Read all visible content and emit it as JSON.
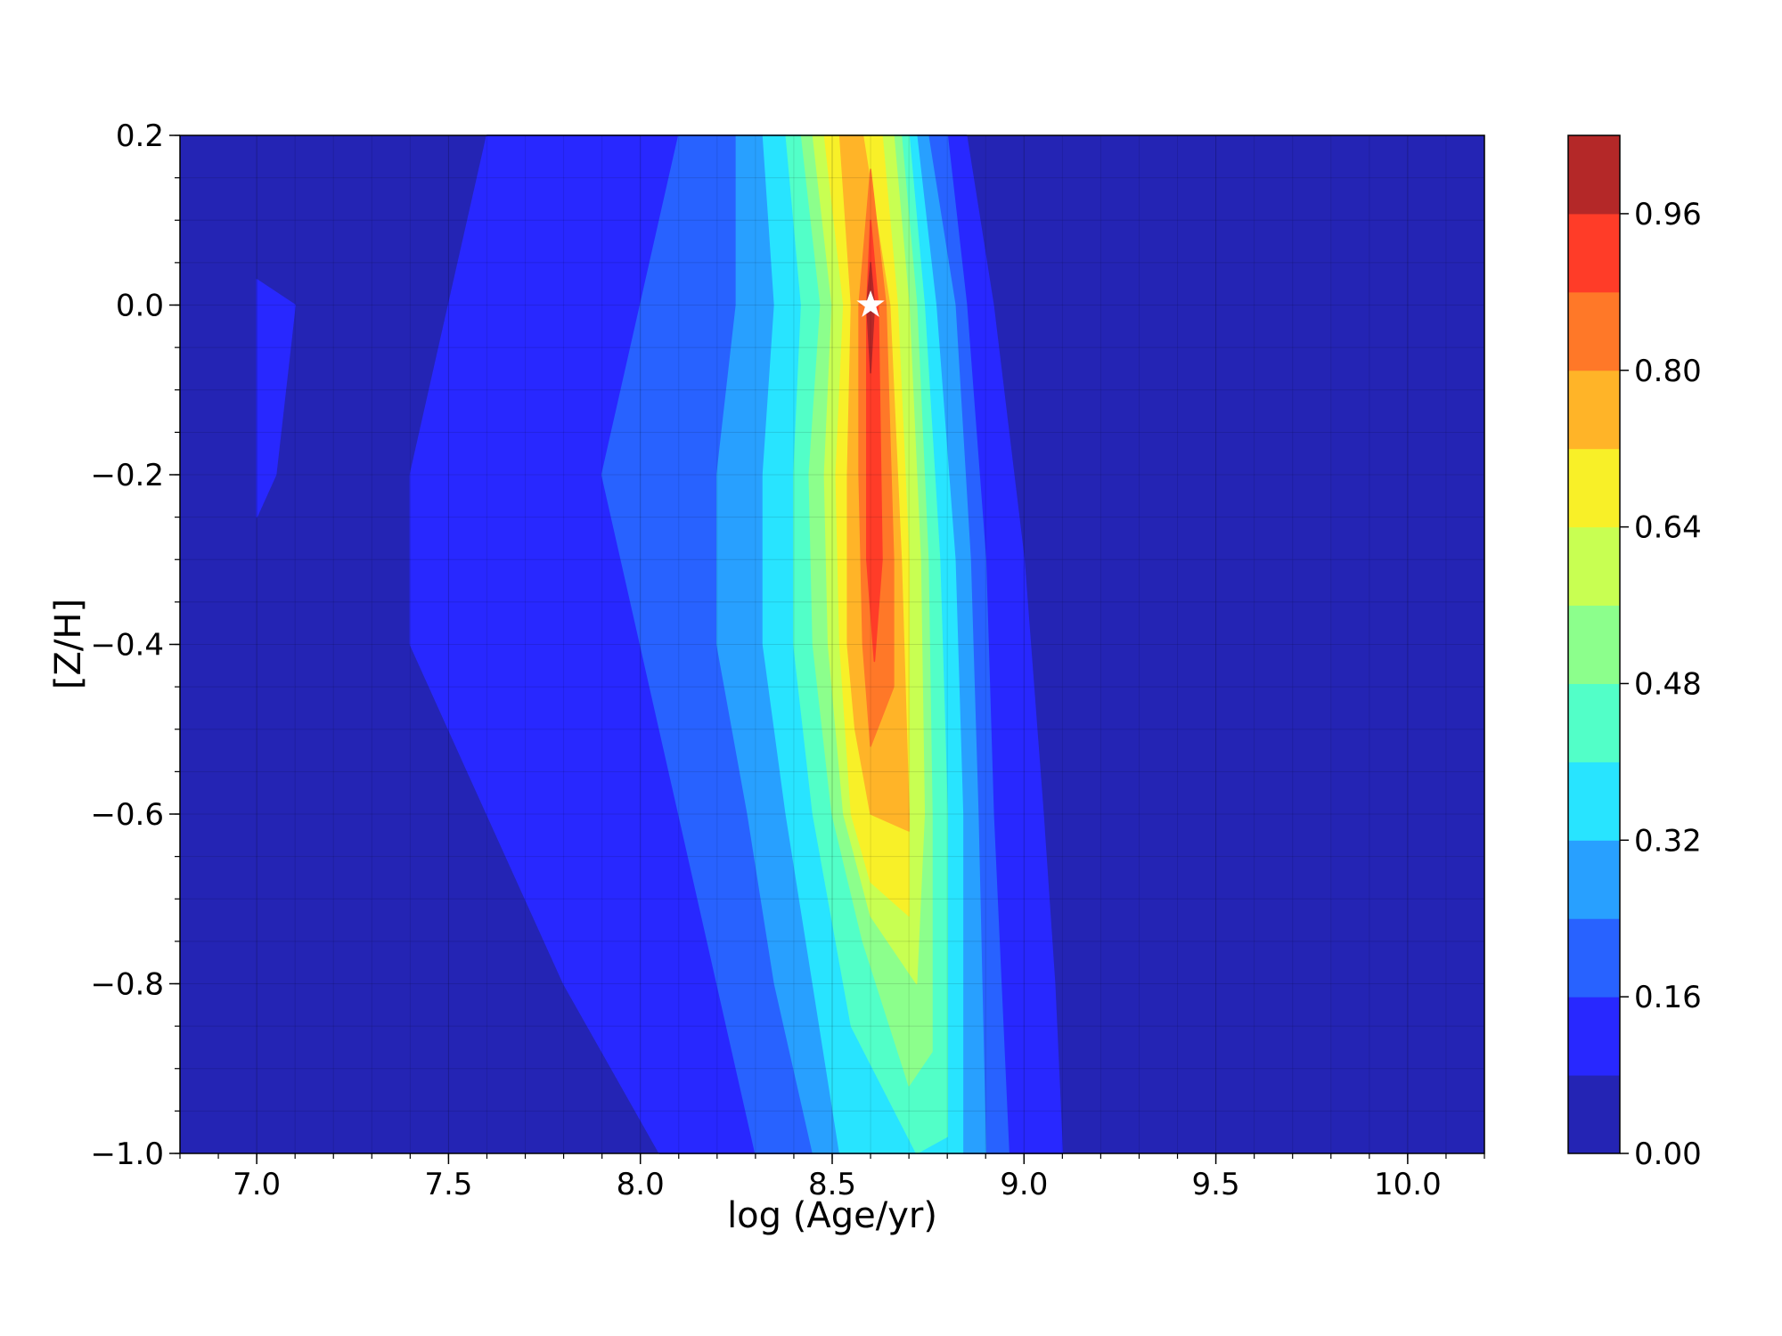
{
  "chart_data": {
    "type": "contour",
    "title": "",
    "xlabel": "log (Age/yr)",
    "ylabel": "[Z/H]",
    "xlim": [
      6.8,
      10.2
    ],
    "ylim": [
      -1.0,
      0.2
    ],
    "x_ticks": [
      7.0,
      7.5,
      8.0,
      8.5,
      9.0,
      9.5,
      10.0
    ],
    "x_tick_labels": [
      "7.0",
      "7.5",
      "8.0",
      "8.5",
      "9.0",
      "9.5",
      "10.0"
    ],
    "y_ticks": [
      0.2,
      0.0,
      -0.2,
      -0.4,
      -0.6,
      -0.8,
      -1.0
    ],
    "y_tick_labels": [
      "0.2",
      "0.0",
      "−0.2",
      "−0.4",
      "−0.6",
      "−0.8",
      "−1.0"
    ],
    "grid": true,
    "colorbar": {
      "levels": [
        0.0,
        0.08,
        0.16,
        0.24,
        0.32,
        0.4,
        0.48,
        0.56,
        0.64,
        0.72,
        0.8,
        0.88,
        0.96,
        1.04
      ],
      "tick_values": [
        0.0,
        0.16,
        0.32,
        0.48,
        0.64,
        0.8,
        0.96
      ],
      "tick_labels": [
        "0.00",
        "0.16",
        "0.32",
        "0.48",
        "0.64",
        "0.80",
        "0.96"
      ],
      "colors": [
        "#2424b4",
        "#2828ff",
        "#2862ff",
        "#28a0ff",
        "#28e4ff",
        "#52ffc8",
        "#8cff8c",
        "#c8ff52",
        "#f8f028",
        "#ffb428",
        "#ff7828",
        "#ff3c28",
        "#b42828"
      ]
    },
    "marker": {
      "x": 8.6,
      "y": 0.0,
      "symbol": "star",
      "color": "#ffffff"
    },
    "contours": [
      {
        "level": 0.08,
        "color": "#2828ff",
        "points": [
          [
            7.6,
            0.2
          ],
          [
            8.85,
            0.2
          ],
          [
            8.92,
            0.0
          ],
          [
            9.0,
            -0.3
          ],
          [
            9.05,
            -0.6
          ],
          [
            9.08,
            -0.8
          ],
          [
            9.1,
            -1.0
          ],
          [
            8.05,
            -1.0
          ],
          [
            7.8,
            -0.8
          ],
          [
            7.55,
            -0.55
          ],
          [
            7.4,
            -0.4
          ],
          [
            7.4,
            -0.2
          ],
          [
            7.5,
            0.0
          ]
        ]
      },
      {
        "level": 0.08,
        "color": "#2828ff",
        "points": [
          [
            7.0,
            0.03
          ],
          [
            7.1,
            0.0
          ],
          [
            7.05,
            -0.2
          ],
          [
            7.0,
            -0.25
          ]
        ]
      },
      {
        "level": 0.16,
        "color": "#2862ff",
        "points": [
          [
            8.1,
            0.2
          ],
          [
            8.8,
            0.2
          ],
          [
            8.85,
            0.0
          ],
          [
            8.9,
            -0.3
          ],
          [
            8.92,
            -0.6
          ],
          [
            8.96,
            -1.0
          ],
          [
            8.3,
            -1.0
          ],
          [
            8.2,
            -0.8
          ],
          [
            8.1,
            -0.6
          ],
          [
            8.0,
            -0.4
          ],
          [
            7.9,
            -0.2
          ],
          [
            8.0,
            0.0
          ]
        ]
      },
      {
        "level": 0.24,
        "color": "#28a0ff",
        "points": [
          [
            8.25,
            0.2
          ],
          [
            8.75,
            0.2
          ],
          [
            8.82,
            0.0
          ],
          [
            8.86,
            -0.3
          ],
          [
            8.88,
            -0.6
          ],
          [
            8.9,
            -1.0
          ],
          [
            8.45,
            -1.0
          ],
          [
            8.35,
            -0.8
          ],
          [
            8.28,
            -0.6
          ],
          [
            8.2,
            -0.4
          ],
          [
            8.2,
            -0.2
          ],
          [
            8.25,
            0.0
          ]
        ]
      },
      {
        "level": 0.32,
        "color": "#28e4ff",
        "points": [
          [
            8.32,
            0.2
          ],
          [
            8.72,
            0.2
          ],
          [
            8.77,
            0.0
          ],
          [
            8.82,
            -0.3
          ],
          [
            8.84,
            -0.6
          ],
          [
            8.84,
            -1.0
          ],
          [
            8.52,
            -1.0
          ],
          [
            8.45,
            -0.8
          ],
          [
            8.38,
            -0.6
          ],
          [
            8.32,
            -0.4
          ],
          [
            8.32,
            -0.2
          ],
          [
            8.35,
            0.0
          ]
        ]
      },
      {
        "level": 0.4,
        "color": "#52ffc8",
        "points": [
          [
            8.38,
            0.2
          ],
          [
            8.7,
            0.2
          ],
          [
            8.74,
            0.0
          ],
          [
            8.78,
            -0.3
          ],
          [
            8.8,
            -0.6
          ],
          [
            8.8,
            -0.98
          ],
          [
            8.72,
            -1.0
          ],
          [
            8.55,
            -0.85
          ],
          [
            8.45,
            -0.6
          ],
          [
            8.4,
            -0.4
          ],
          [
            8.4,
            -0.2
          ],
          [
            8.42,
            0.0
          ]
        ]
      },
      {
        "level": 0.48,
        "color": "#8cff8c",
        "points": [
          [
            8.42,
            0.2
          ],
          [
            8.68,
            0.2
          ],
          [
            8.72,
            0.0
          ],
          [
            8.75,
            -0.3
          ],
          [
            8.76,
            -0.6
          ],
          [
            8.76,
            -0.88
          ],
          [
            8.7,
            -0.92
          ],
          [
            8.58,
            -0.75
          ],
          [
            8.5,
            -0.6
          ],
          [
            8.45,
            -0.4
          ],
          [
            8.44,
            -0.2
          ],
          [
            8.47,
            0.0
          ]
        ]
      },
      {
        "level": 0.56,
        "color": "#c8ff52",
        "points": [
          [
            8.45,
            0.2
          ],
          [
            8.66,
            0.2
          ],
          [
            8.7,
            0.0
          ],
          [
            8.73,
            -0.3
          ],
          [
            8.74,
            -0.6
          ],
          [
            8.72,
            -0.8
          ],
          [
            8.6,
            -0.72
          ],
          [
            8.53,
            -0.6
          ],
          [
            8.49,
            -0.4
          ],
          [
            8.48,
            -0.2
          ],
          [
            8.5,
            0.0
          ]
        ]
      },
      {
        "level": 0.64,
        "color": "#f8f028",
        "points": [
          [
            8.48,
            0.2
          ],
          [
            8.63,
            0.2
          ],
          [
            8.67,
            0.0
          ],
          [
            8.7,
            -0.3
          ],
          [
            8.7,
            -0.6
          ],
          [
            8.7,
            -0.72
          ],
          [
            8.6,
            -0.68
          ],
          [
            8.55,
            -0.6
          ],
          [
            8.52,
            -0.4
          ],
          [
            8.51,
            -0.2
          ],
          [
            8.53,
            0.0
          ]
        ]
      },
      {
        "level": 0.72,
        "color": "#ffb428",
        "points": [
          [
            8.52,
            0.2
          ],
          [
            8.58,
            0.2
          ],
          [
            8.65,
            0.0
          ],
          [
            8.68,
            -0.3
          ],
          [
            8.7,
            -0.6
          ],
          [
            8.7,
            -0.62
          ],
          [
            8.6,
            -0.6
          ],
          [
            8.56,
            -0.5
          ],
          [
            8.54,
            -0.4
          ],
          [
            8.54,
            -0.2
          ],
          [
            8.55,
            0.0
          ]
        ]
      },
      {
        "level": 0.8,
        "color": "#ff7828",
        "points": [
          [
            8.6,
            0.16
          ],
          [
            8.64,
            0.0
          ],
          [
            8.66,
            -0.3
          ],
          [
            8.66,
            -0.45
          ],
          [
            8.6,
            -0.52
          ],
          [
            8.58,
            -0.4
          ],
          [
            8.57,
            -0.2
          ],
          [
            8.57,
            0.0
          ]
        ]
      },
      {
        "level": 0.88,
        "color": "#ff3c28",
        "points": [
          [
            8.6,
            0.1
          ],
          [
            8.62,
            0.0
          ],
          [
            8.63,
            -0.3
          ],
          [
            8.61,
            -0.42
          ],
          [
            8.59,
            -0.3
          ],
          [
            8.59,
            0.0
          ]
        ]
      },
      {
        "level": 0.96,
        "color": "#b42828",
        "points": [
          [
            8.6,
            0.05
          ],
          [
            8.61,
            0.0
          ],
          [
            8.6,
            -0.08
          ],
          [
            8.59,
            0.0
          ]
        ]
      }
    ]
  }
}
